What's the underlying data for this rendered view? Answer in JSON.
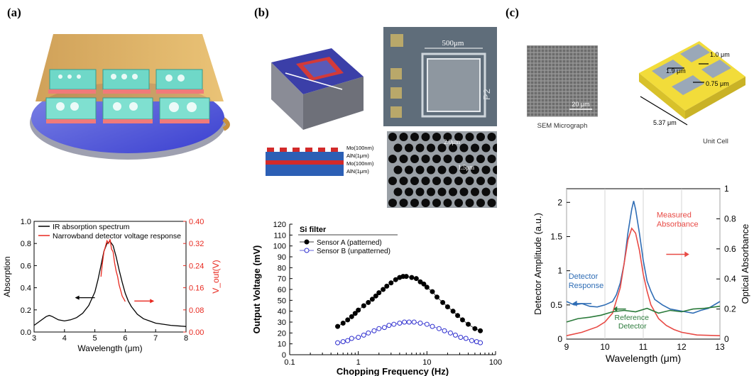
{
  "panels": {
    "a": {
      "letter": "(a)"
    },
    "b": {
      "letter": "(b)"
    },
    "c": {
      "letter": "(c)"
    }
  },
  "images": {
    "b_micro_scale": "500μm",
    "b_micro_tag": "P2",
    "b_stack_layers": [
      "Mo(100nm)",
      "AlN(1μm)",
      "Mo(100nm)",
      "AlN(1μm)"
    ],
    "b_hole_labels": [
      "2.0μm",
      "1.5μm"
    ],
    "c_sem_scale": "20 μm",
    "c_sem_caption": "SEM Micrograph",
    "c_unit_caption": "Unit Cell",
    "c_unit_dims": [
      "1.9 μm",
      "1.0 μm",
      "0.75 μm",
      "5.37 μm"
    ]
  },
  "chart_data": [
    {
      "type": "line",
      "id": "a",
      "xlabel": "Wavelength (μm)",
      "ylabel": "Absorption",
      "y2label": "V_out(V)",
      "xlim": [
        3,
        8
      ],
      "ylim": [
        0,
        1.0
      ],
      "y2lim": [
        0,
        0.4
      ],
      "xticks": [
        "3",
        "4",
        "5",
        "6",
        "7",
        "8"
      ],
      "yticks": [
        "0.0",
        "0.2",
        "0.4",
        "0.6",
        "0.8",
        "1.0"
      ],
      "y2ticks": [
        "0.00",
        "0.08",
        "0.16",
        "0.24",
        "0.32",
        "0.40"
      ],
      "legend_position": "top-left",
      "series": [
        {
          "name": "IR absorption spectrum",
          "color": "#000000",
          "axis": "left",
          "x": [
            3.0,
            3.2,
            3.4,
            3.5,
            3.6,
            3.8,
            4.0,
            4.2,
            4.4,
            4.6,
            4.8,
            5.0,
            5.1,
            5.2,
            5.3,
            5.4,
            5.5,
            5.6,
            5.7,
            5.8,
            5.9,
            6.0,
            6.1,
            6.2,
            6.4,
            6.6,
            6.8,
            7.0,
            7.5,
            8.0
          ],
          "y": [
            0.06,
            0.1,
            0.14,
            0.15,
            0.14,
            0.11,
            0.1,
            0.11,
            0.13,
            0.17,
            0.24,
            0.36,
            0.47,
            0.6,
            0.73,
            0.8,
            0.82,
            0.78,
            0.68,
            0.56,
            0.45,
            0.35,
            0.28,
            0.23,
            0.16,
            0.12,
            0.1,
            0.08,
            0.06,
            0.05
          ]
        },
        {
          "name": "Narrowband detector voltage response",
          "color": "#e8291f",
          "axis": "right",
          "x": [
            5.2,
            5.25,
            5.3,
            5.35,
            5.4,
            5.45,
            5.5,
            5.55,
            5.6,
            5.65,
            5.7,
            5.75,
            5.8,
            5.85,
            5.9,
            5.95,
            6.0
          ],
          "y": [
            0.2,
            0.25,
            0.29,
            0.31,
            0.33,
            0.32,
            0.335,
            0.3,
            0.29,
            0.25,
            0.22,
            0.2,
            0.17,
            0.15,
            0.13,
            0.12,
            0.11
          ]
        }
      ],
      "annotations": [
        {
          "type": "arrow",
          "direction": "left",
          "color": "#000000",
          "x": 5.0,
          "y": 0.31
        },
        {
          "type": "arrow",
          "direction": "right",
          "color": "#e8291f",
          "x": 6.3,
          "y": 0.28
        }
      ]
    },
    {
      "type": "scatter",
      "id": "b",
      "xlabel": "Chopping Frequency (Hz)",
      "ylabel": "Output Voltage (mV)",
      "xscale": "log",
      "xlim": [
        0.1,
        100
      ],
      "ylim": [
        0,
        120
      ],
      "xticks": [
        "0.1",
        "1",
        "10",
        "100"
      ],
      "yticks": [
        "0",
        "10",
        "20",
        "30",
        "40",
        "50",
        "60",
        "70",
        "80",
        "90",
        "100",
        "110",
        "120"
      ],
      "legend_title": "Si filter",
      "legend_position": "top-left",
      "series": [
        {
          "name": "Sensor A   (patterned)",
          "color": "#000000",
          "filled": true,
          "x": [
            0.5,
            0.6,
            0.7,
            0.8,
            0.9,
            1.0,
            1.2,
            1.4,
            1.6,
            1.8,
            2.0,
            2.3,
            2.6,
            3.0,
            3.5,
            4.0,
            4.5,
            5.0,
            6.0,
            7.0,
            8.0,
            9.0,
            10,
            12,
            14,
            17,
            20,
            24,
            28,
            33,
            40,
            50,
            60
          ],
          "y": [
            26,
            29,
            32,
            35,
            38,
            41,
            45,
            48,
            51,
            54,
            57,
            60,
            63,
            66,
            69,
            71,
            72,
            72,
            71,
            70,
            67,
            65,
            62,
            58,
            53,
            48,
            44,
            40,
            36,
            32,
            28,
            24,
            22
          ]
        },
        {
          "name": "Sensor B (unpatterned)",
          "color": "#2f2fcf",
          "filled": false,
          "x": [
            0.5,
            0.6,
            0.7,
            0.8,
            1.0,
            1.2,
            1.4,
            1.7,
            2.0,
            2.4,
            2.8,
            3.3,
            4.0,
            4.7,
            5.5,
            6.5,
            8.0,
            10,
            12,
            15,
            18,
            22,
            26,
            31,
            37,
            45,
            53,
            60
          ],
          "y": [
            11,
            12,
            13,
            15,
            16,
            18,
            20,
            22,
            24,
            25,
            27,
            28,
            29,
            30,
            30,
            30,
            29,
            28,
            26,
            24,
            22,
            20,
            18,
            16,
            15,
            13,
            12,
            11
          ]
        }
      ]
    },
    {
      "type": "line",
      "id": "c",
      "xlabel": "Wavelength (μm)",
      "ylabel": "Detector Amplitude (a.u.)",
      "y2label": "Optical Absorbance",
      "xlim": [
        9,
        13
      ],
      "ylim": [
        0,
        2.2
      ],
      "y2lim": [
        0,
        1
      ],
      "xticks": [
        "9",
        "10",
        "11",
        "12",
        "13"
      ],
      "yticks": [
        "0",
        "0.5",
        "1",
        "1.5",
        "2"
      ],
      "y2ticks": [
        "0",
        "0.2",
        "0.4",
        "0.6",
        "0.8",
        "1"
      ],
      "series": [
        {
          "color": "#2f6db5",
          "axis": "left",
          "x": [
            9.0,
            9.2,
            9.4,
            9.6,
            9.8,
            10.0,
            10.2,
            10.3,
            10.4,
            10.5,
            10.6,
            10.7,
            10.75,
            10.8,
            10.9,
            11.0,
            11.1,
            11.2,
            11.3,
            11.5,
            11.7,
            11.9,
            12.1,
            12.3,
            12.5,
            12.7,
            13.0
          ],
          "y": [
            0.55,
            0.5,
            0.52,
            0.48,
            0.47,
            0.5,
            0.55,
            0.65,
            0.82,
            1.1,
            1.55,
            1.9,
            2.02,
            1.9,
            1.55,
            1.15,
            0.85,
            0.7,
            0.58,
            0.5,
            0.44,
            0.42,
            0.4,
            0.38,
            0.42,
            0.45,
            0.55
          ]
        },
        {
          "color": "#e84a45",
          "axis": "left",
          "x": [
            9.0,
            9.4,
            9.8,
            10.0,
            10.2,
            10.4,
            10.5,
            10.6,
            10.7,
            10.8,
            10.9,
            11.0,
            11.1,
            11.2,
            11.4,
            11.6,
            11.8,
            12.0,
            12.4,
            13.0
          ],
          "y": [
            0.05,
            0.1,
            0.18,
            0.25,
            0.38,
            0.75,
            1.1,
            1.45,
            1.62,
            1.55,
            1.3,
            0.95,
            0.7,
            0.5,
            0.3,
            0.2,
            0.14,
            0.1,
            0.06,
            0.05
          ]
        },
        {
          "color": "#2a7a3a",
          "axis": "left",
          "x": [
            9.0,
            9.3,
            9.6,
            9.9,
            10.2,
            10.5,
            10.8,
            11.1,
            11.4,
            11.7,
            12.0,
            12.3,
            12.6,
            13.0
          ],
          "y": [
            0.25,
            0.3,
            0.32,
            0.35,
            0.4,
            0.42,
            0.4,
            0.45,
            0.38,
            0.42,
            0.4,
            0.44,
            0.45,
            0.48
          ]
        }
      ],
      "annotations": [
        {
          "text": "Measured Absorbance",
          "color": "#e84a45",
          "arrow": "right"
        },
        {
          "text": "Detector Response",
          "color": "#2f6db5",
          "arrow": "left"
        },
        {
          "text": "Reference Detector",
          "color": "#2a7a3a",
          "arrow": "left"
        }
      ]
    }
  ]
}
